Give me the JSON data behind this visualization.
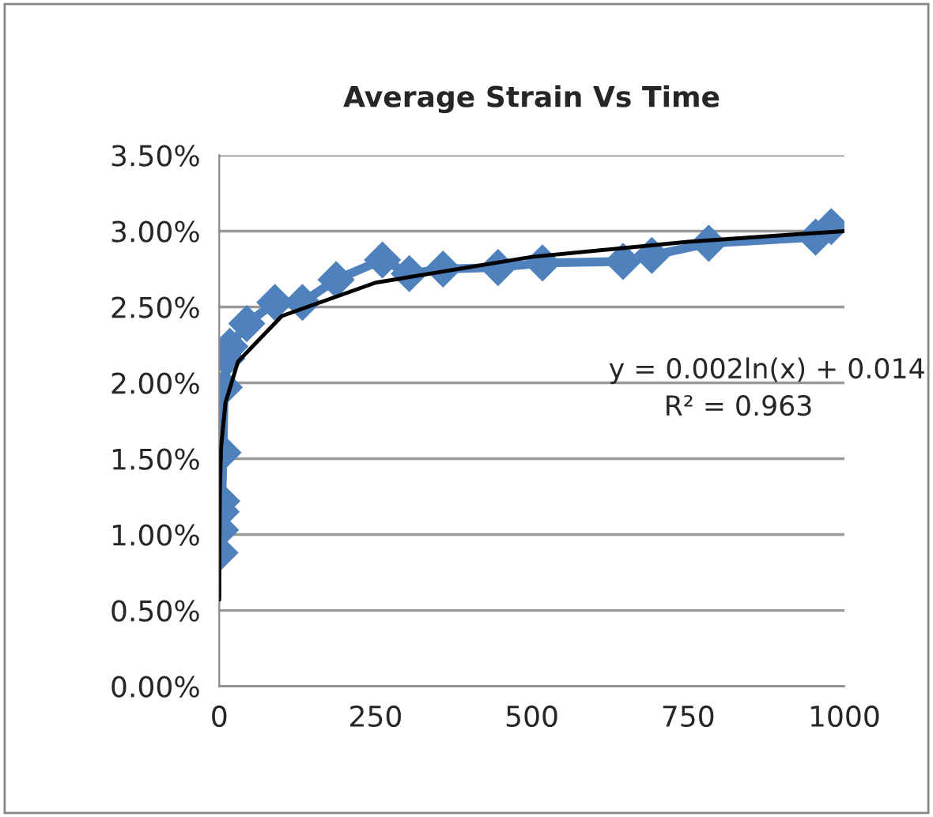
{
  "chart_data": {
    "type": "line",
    "title": "Average Strain Vs Time",
    "series": [
      {
        "color": "#4f81bd",
        "marker": "diamond",
        "x": [
          1,
          2,
          3,
          4,
          6,
          8,
          12,
          17,
          44,
          89,
          133,
          187,
          261,
          304,
          358,
          446,
          517,
          646,
          692,
          783,
          954,
          979
        ],
        "values": [
          0.88,
          1.03,
          1.15,
          1.22,
          1.54,
          1.97,
          2.16,
          2.24,
          2.39,
          2.53,
          2.53,
          2.68,
          2.81,
          2.72,
          2.75,
          2.76,
          2.79,
          2.8,
          2.84,
          2.92,
          2.96,
          3.03
        ]
      },
      {
        "color": "#000000",
        "marker": "none",
        "x": [
          0.05,
          0.2,
          1,
          3,
          10,
          30,
          100,
          250,
          500,
          750,
          1000
        ],
        "values": [
          0.57,
          0.91,
          1.31,
          1.58,
          1.87,
          2.14,
          2.44,
          2.66,
          2.83,
          2.93,
          3.0
        ]
      }
    ],
    "xlim": [
      0,
      1000
    ],
    "xticks": [
      0,
      250,
      500,
      750,
      1000
    ],
    "ylim": [
      0,
      3.5
    ],
    "yticks": [
      {
        "value": 0,
        "label": "0.00%"
      },
      {
        "value": 0.5,
        "label": "0.50%"
      },
      {
        "value": 1,
        "label": "1.00%"
      },
      {
        "value": 1.5,
        "label": "1.50%"
      },
      {
        "value": 2,
        "label": "2.00%"
      },
      {
        "value": 2.5,
        "label": "2.50%"
      },
      {
        "value": 3,
        "label": "3.00%"
      },
      {
        "value": 3.5,
        "label": "3.50%"
      }
    ],
    "grid": "y",
    "legend": false,
    "annotations": [
      "y = 0.002ln(x) + 0.014",
      "R² = 0.963"
    ]
  }
}
